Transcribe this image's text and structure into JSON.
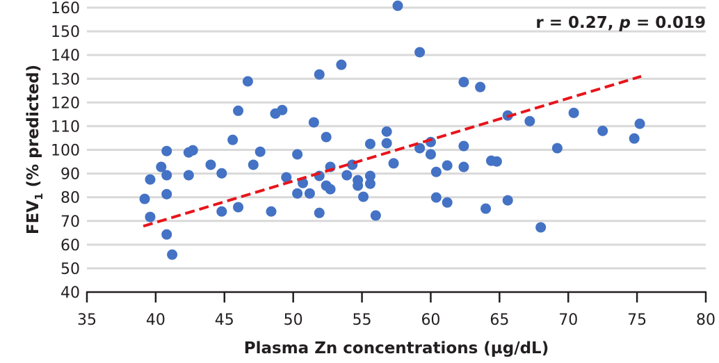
{
  "chart_data": {
    "type": "scatter",
    "title": "",
    "xlabel": "Plasma Zn concentrations (µg/dL)",
    "ylabel_main": "FEV",
    "ylabel_sub": "1",
    "ylabel_rest": " (% predicted)",
    "xlim": [
      35,
      80
    ],
    "ylim": [
      40,
      160
    ],
    "xticks": [
      35,
      40,
      45,
      50,
      55,
      60,
      65,
      70,
      75,
      80
    ],
    "yticks": [
      40,
      50,
      60,
      70,
      80,
      90,
      100,
      110,
      120,
      130,
      140,
      150,
      160
    ],
    "grid": "horizontal",
    "annotation": {
      "r_part": "r = 0.27, ",
      "p_label": "p",
      "p_part": " = 0.019"
    },
    "colors": {
      "points": "#4472c4",
      "trend": "#e8141b",
      "grid": "#d9d9d9",
      "axis": "#231f20"
    },
    "trendline": {
      "x": [
        39.1,
        75.3
      ],
      "y": [
        67.8,
        131.0
      ],
      "style": "dashed"
    },
    "points": [
      [
        39.2,
        79.3
      ],
      [
        39.6,
        87.5
      ],
      [
        39.6,
        71.7
      ],
      [
        40.4,
        92.8
      ],
      [
        40.8,
        99.5
      ],
      [
        40.8,
        89.3
      ],
      [
        40.8,
        81.3
      ],
      [
        40.8,
        64.3
      ],
      [
        41.2,
        55.8
      ],
      [
        42.4,
        98.9
      ],
      [
        42.7,
        99.8
      ],
      [
        42.4,
        89.3
      ],
      [
        44.0,
        93.7
      ],
      [
        44.8,
        90.1
      ],
      [
        44.8,
        74.0
      ],
      [
        45.6,
        104.2
      ],
      [
        46.0,
        116.5
      ],
      [
        46.0,
        75.8
      ],
      [
        46.7,
        128.9
      ],
      [
        47.1,
        93.7
      ],
      [
        47.6,
        99.2
      ],
      [
        48.4,
        74.0
      ],
      [
        48.7,
        115.3
      ],
      [
        49.2,
        116.8
      ],
      [
        49.5,
        88.4
      ],
      [
        50.3,
        98.1
      ],
      [
        50.3,
        81.6
      ],
      [
        50.7,
        86.0
      ],
      [
        51.2,
        81.6
      ],
      [
        51.5,
        111.6
      ],
      [
        51.9,
        131.8
      ],
      [
        51.9,
        89.0
      ],
      [
        51.9,
        73.4
      ],
      [
        52.4,
        105.4
      ],
      [
        52.4,
        84.9
      ],
      [
        52.7,
        92.8
      ],
      [
        52.7,
        83.4
      ],
      [
        53.5,
        135.9
      ],
      [
        53.9,
        89.3
      ],
      [
        54.3,
        93.7
      ],
      [
        54.7,
        87.2
      ],
      [
        54.7,
        84.9
      ],
      [
        55.1,
        80.2
      ],
      [
        55.6,
        102.5
      ],
      [
        55.6,
        89.0
      ],
      [
        55.6,
        85.7
      ],
      [
        56.0,
        72.3
      ],
      [
        56.8,
        107.7
      ],
      [
        56.8,
        102.8
      ],
      [
        57.3,
        94.3
      ],
      [
        57.6,
        160.8
      ],
      [
        59.2,
        141.2
      ],
      [
        59.2,
        100.7
      ],
      [
        60.0,
        103.3
      ],
      [
        60.0,
        98.1
      ],
      [
        60.4,
        90.7
      ],
      [
        60.4,
        79.9
      ],
      [
        61.2,
        93.4
      ],
      [
        61.2,
        77.8
      ],
      [
        62.4,
        128.6
      ],
      [
        62.4,
        101.6
      ],
      [
        62.4,
        92.8
      ],
      [
        63.6,
        126.5
      ],
      [
        64.0,
        75.2
      ],
      [
        64.4,
        95.4
      ],
      [
        64.8,
        95.1
      ],
      [
        65.6,
        114.5
      ],
      [
        65.6,
        78.7
      ],
      [
        67.2,
        112.1
      ],
      [
        68.0,
        67.3
      ],
      [
        69.2,
        100.7
      ],
      [
        70.4,
        115.6
      ],
      [
        72.5,
        108.0
      ],
      [
        74.8,
        104.8
      ],
      [
        75.2,
        111.0
      ]
    ]
  }
}
